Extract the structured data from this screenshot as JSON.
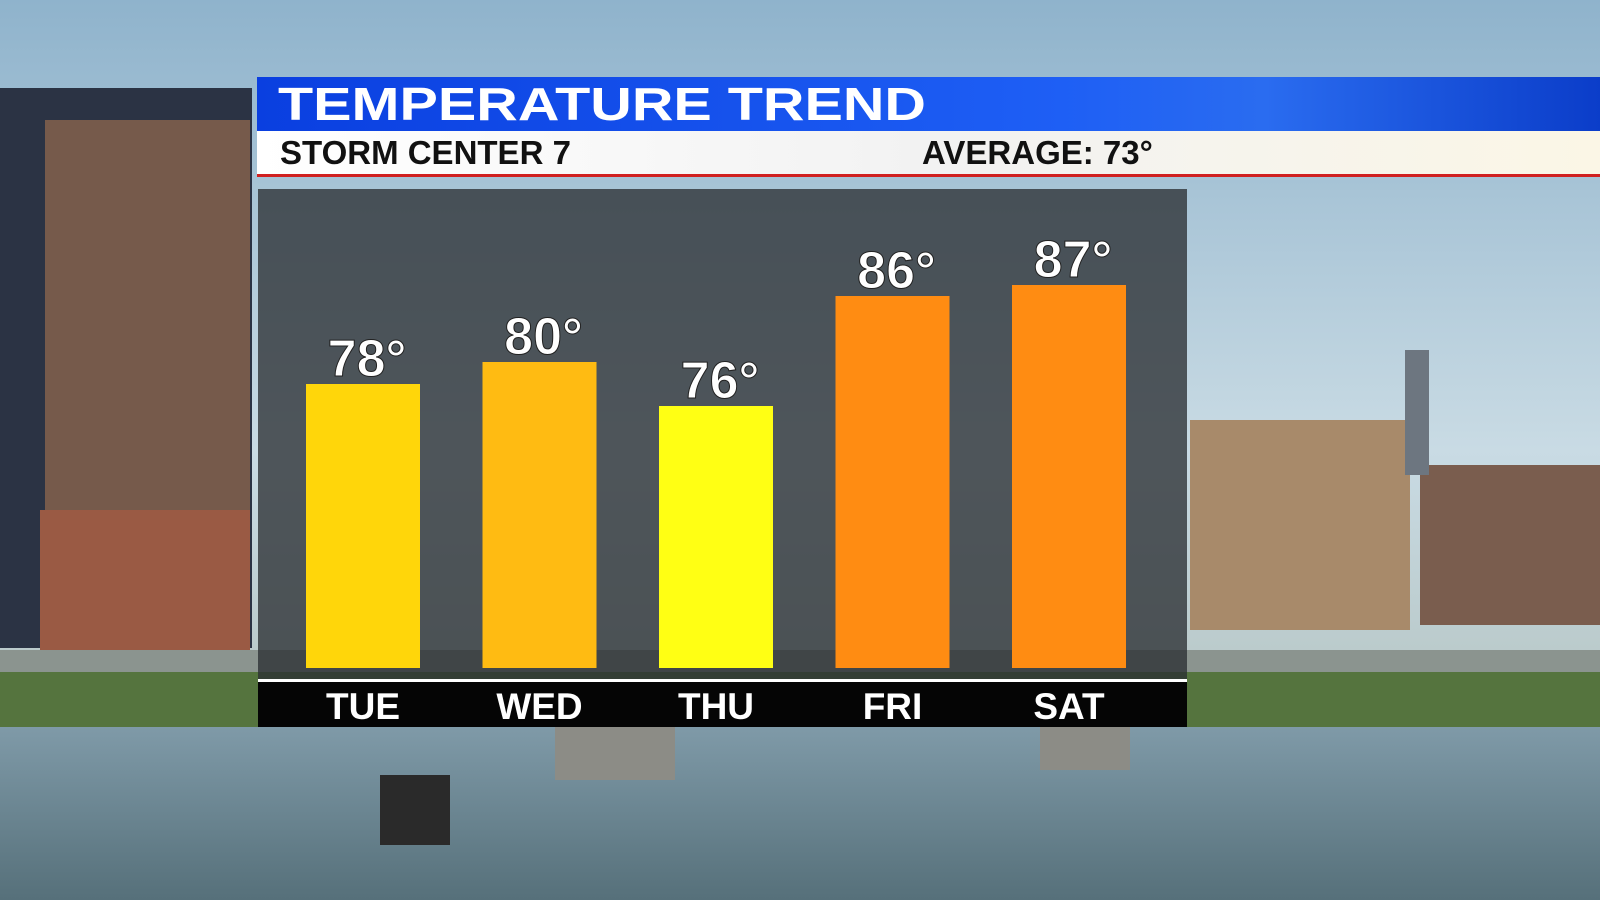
{
  "chart_data": {
    "type": "bar",
    "title": "TEMPERATURE TREND",
    "subtitle": "STORM CENTER 7",
    "annotation": "AVERAGE: 73°",
    "categories": [
      "TUE",
      "WED",
      "THU",
      "FRI",
      "SAT"
    ],
    "values": [
      78,
      80,
      76,
      86,
      87
    ],
    "value_labels": [
      "78°",
      "80°",
      "76°",
      "86°",
      "87°"
    ],
    "colors": [
      "#ffd60a",
      "#ffbb12",
      "#ffff14",
      "#ff8c12",
      "#ff8c12"
    ]
  }
}
